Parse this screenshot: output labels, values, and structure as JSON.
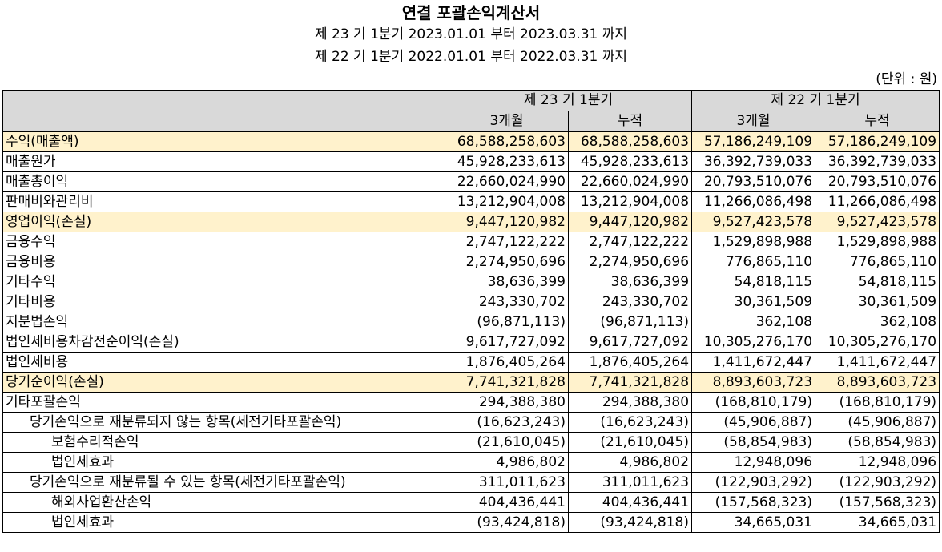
{
  "title": "연결 포괄손익계산서",
  "period_current": "제 23 기 1분기 2023.01.01 부터 2023.03.31 까지",
  "period_prior": "제 22 기 1분기 2022.01.01 부터 2022.03.31 까지",
  "unit": "(단위 : 원)",
  "headers": {
    "group1": "제 23 기 1분기",
    "group2": "제 22 기 1분기",
    "col1": "3개월",
    "col2": "누적",
    "col3": "3개월",
    "col4": "누적"
  },
  "rows": [
    {
      "label": "수익(매출액)",
      "c1": "68,588,258,603",
      "c2": "68,588,258,603",
      "c3": "57,186,249,109",
      "c4": "57,186,249,109"
    },
    {
      "label": "매출원가",
      "c1": "45,928,233,613",
      "c2": "45,928,233,613",
      "c3": "36,392,739,033",
      "c4": "36,392,739,033"
    },
    {
      "label": "매출총이익",
      "c1": "22,660,024,990",
      "c2": "22,660,024,990",
      "c3": "20,793,510,076",
      "c4": "20,793,510,076"
    },
    {
      "label": "판매비와관리비",
      "c1": "13,212,904,008",
      "c2": "13,212,904,008",
      "c3": "11,266,086,498",
      "c4": "11,266,086,498"
    },
    {
      "label": "영업이익(손실)",
      "c1": "9,447,120,982",
      "c2": "9,447,120,982",
      "c3": "9,527,423,578",
      "c4": "9,527,423,578"
    },
    {
      "label": "금융수익",
      "c1": "2,747,122,222",
      "c2": "2,747,122,222",
      "c3": "1,529,898,988",
      "c4": "1,529,898,988"
    },
    {
      "label": "금융비용",
      "c1": "2,274,950,696",
      "c2": "2,274,950,696",
      "c3": "776,865,110",
      "c4": "776,865,110"
    },
    {
      "label": "기타수익",
      "c1": "38,636,399",
      "c2": "38,636,399",
      "c3": "54,818,115",
      "c4": "54,818,115"
    },
    {
      "label": "기타비용",
      "c1": "243,330,702",
      "c2": "243,330,702",
      "c3": "30,361,509",
      "c4": "30,361,509"
    },
    {
      "label": "지분법손익",
      "c1": "(96,871,113)",
      "c2": "(96,871,113)",
      "c3": "362,108",
      "c4": "362,108"
    },
    {
      "label": "법인세비용차감전순이익(손실)",
      "c1": "9,617,727,092",
      "c2": "9,617,727,092",
      "c3": "10,305,276,170",
      "c4": "10,305,276,170"
    },
    {
      "label": "법인세비용",
      "c1": "1,876,405,264",
      "c2": "1,876,405,264",
      "c3": "1,411,672,447",
      "c4": "1,411,672,447"
    },
    {
      "label": "당기순이익(손실)",
      "c1": "7,741,321,828",
      "c2": "7,741,321,828",
      "c3": "8,893,603,723",
      "c4": "8,893,603,723"
    },
    {
      "label": "기타포괄손익",
      "c1": "294,388,380",
      "c2": "294,388,380",
      "c3": "(168,810,179)",
      "c4": "(168,810,179)"
    },
    {
      "label": "당기손익으로 재분류되지 않는 항목(세전기타포괄손익)",
      "c1": "(16,623,243)",
      "c2": "(16,623,243)",
      "c3": "(45,906,887)",
      "c4": "(45,906,887)"
    },
    {
      "label": "보험수리적손익",
      "c1": "(21,610,045)",
      "c2": "(21,610,045)",
      "c3": "(58,854,983)",
      "c4": "(58,854,983)"
    },
    {
      "label": "법인세효과",
      "c1": "4,986,802",
      "c2": "4,986,802",
      "c3": "12,948,096",
      "c4": "12,948,096"
    },
    {
      "label": "당기손익으로 재분류될 수 있는 항목(세전기타포괄손익)",
      "c1": "311,011,623",
      "c2": "311,011,623",
      "c3": "(122,903,292)",
      "c4": "(122,903,292)"
    },
    {
      "label": "해외사업환산손익",
      "c1": "404,436,441",
      "c2": "404,436,441",
      "c3": "(157,568,323)",
      "c4": "(157,568,323)"
    },
    {
      "label": "법인세효과",
      "c1": "(93,424,818)",
      "c2": "(93,424,818)",
      "c3": "34,665,031",
      "c4": "34,665,031"
    }
  ],
  "highlight_color": "#fff2cc",
  "header_color": "#d9d9d9"
}
